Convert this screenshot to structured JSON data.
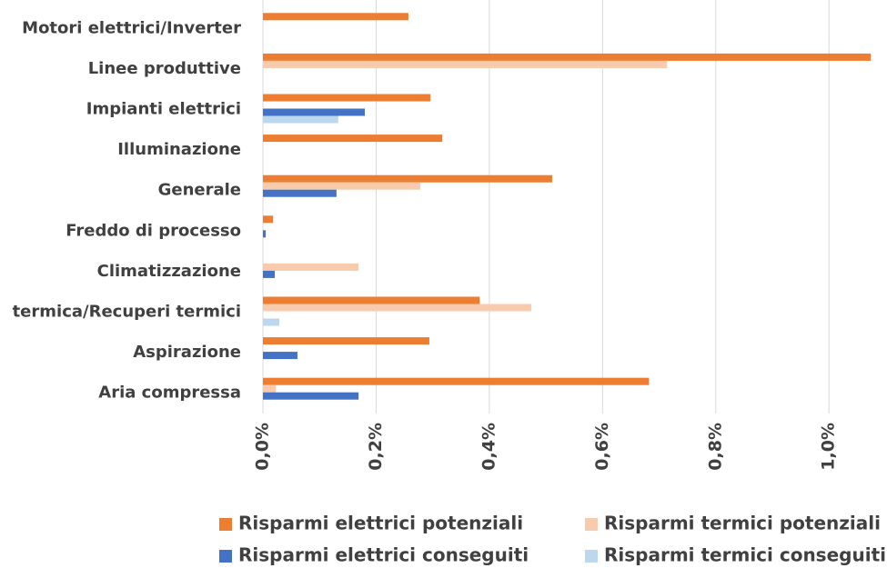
{
  "chart_data": {
    "type": "hbar",
    "categories": [
      "Motori elettrici/Inverter",
      "Linee produttive",
      "Impianti elettrici",
      "Illuminazione",
      "Generale",
      "Freddo di processo",
      "Climatizzazione",
      "termica/Recuperi termici",
      "Aspirazione",
      "Aria compressa"
    ],
    "series": [
      {
        "name": "Risparmi elettrici potenziali",
        "color": "#ed7d31",
        "values": [
          0.257,
          1.074,
          0.296,
          0.317,
          0.511,
          0.018,
          0,
          0.383,
          0.294,
          0.682
        ]
      },
      {
        "name": "Risparmi termici potenziali",
        "color": "#f8cbad",
        "values": [
          0,
          0.714,
          0,
          0,
          0.278,
          0,
          0.169,
          0.474,
          0,
          0.023
        ]
      },
      {
        "name": "Risparmi elettrici conseguiti",
        "color": "#4472c4",
        "values": [
          0,
          0,
          0.18,
          0,
          0.13,
          0.005,
          0.021,
          0,
          0.061,
          0.169
        ]
      },
      {
        "name": "Risparmi termici conseguiti",
        "color": "#bdd7ee",
        "values": [
          0,
          0,
          0.133,
          0,
          0,
          0,
          0,
          0.029,
          0,
          0
        ]
      }
    ],
    "xlim": [
      0,
      1.08
    ],
    "xticks": [
      {
        "value": 0,
        "label": "0,0%"
      },
      {
        "value": 0.2,
        "label": "0,2%"
      },
      {
        "value": 0.4,
        "label": "0,4%"
      },
      {
        "value": 0.6,
        "label": "0,6%"
      },
      {
        "value": 0.8,
        "label": "0,8%"
      },
      {
        "value": 1.0,
        "label": "1,0%"
      }
    ],
    "grid": true,
    "legend": "bottom"
  }
}
